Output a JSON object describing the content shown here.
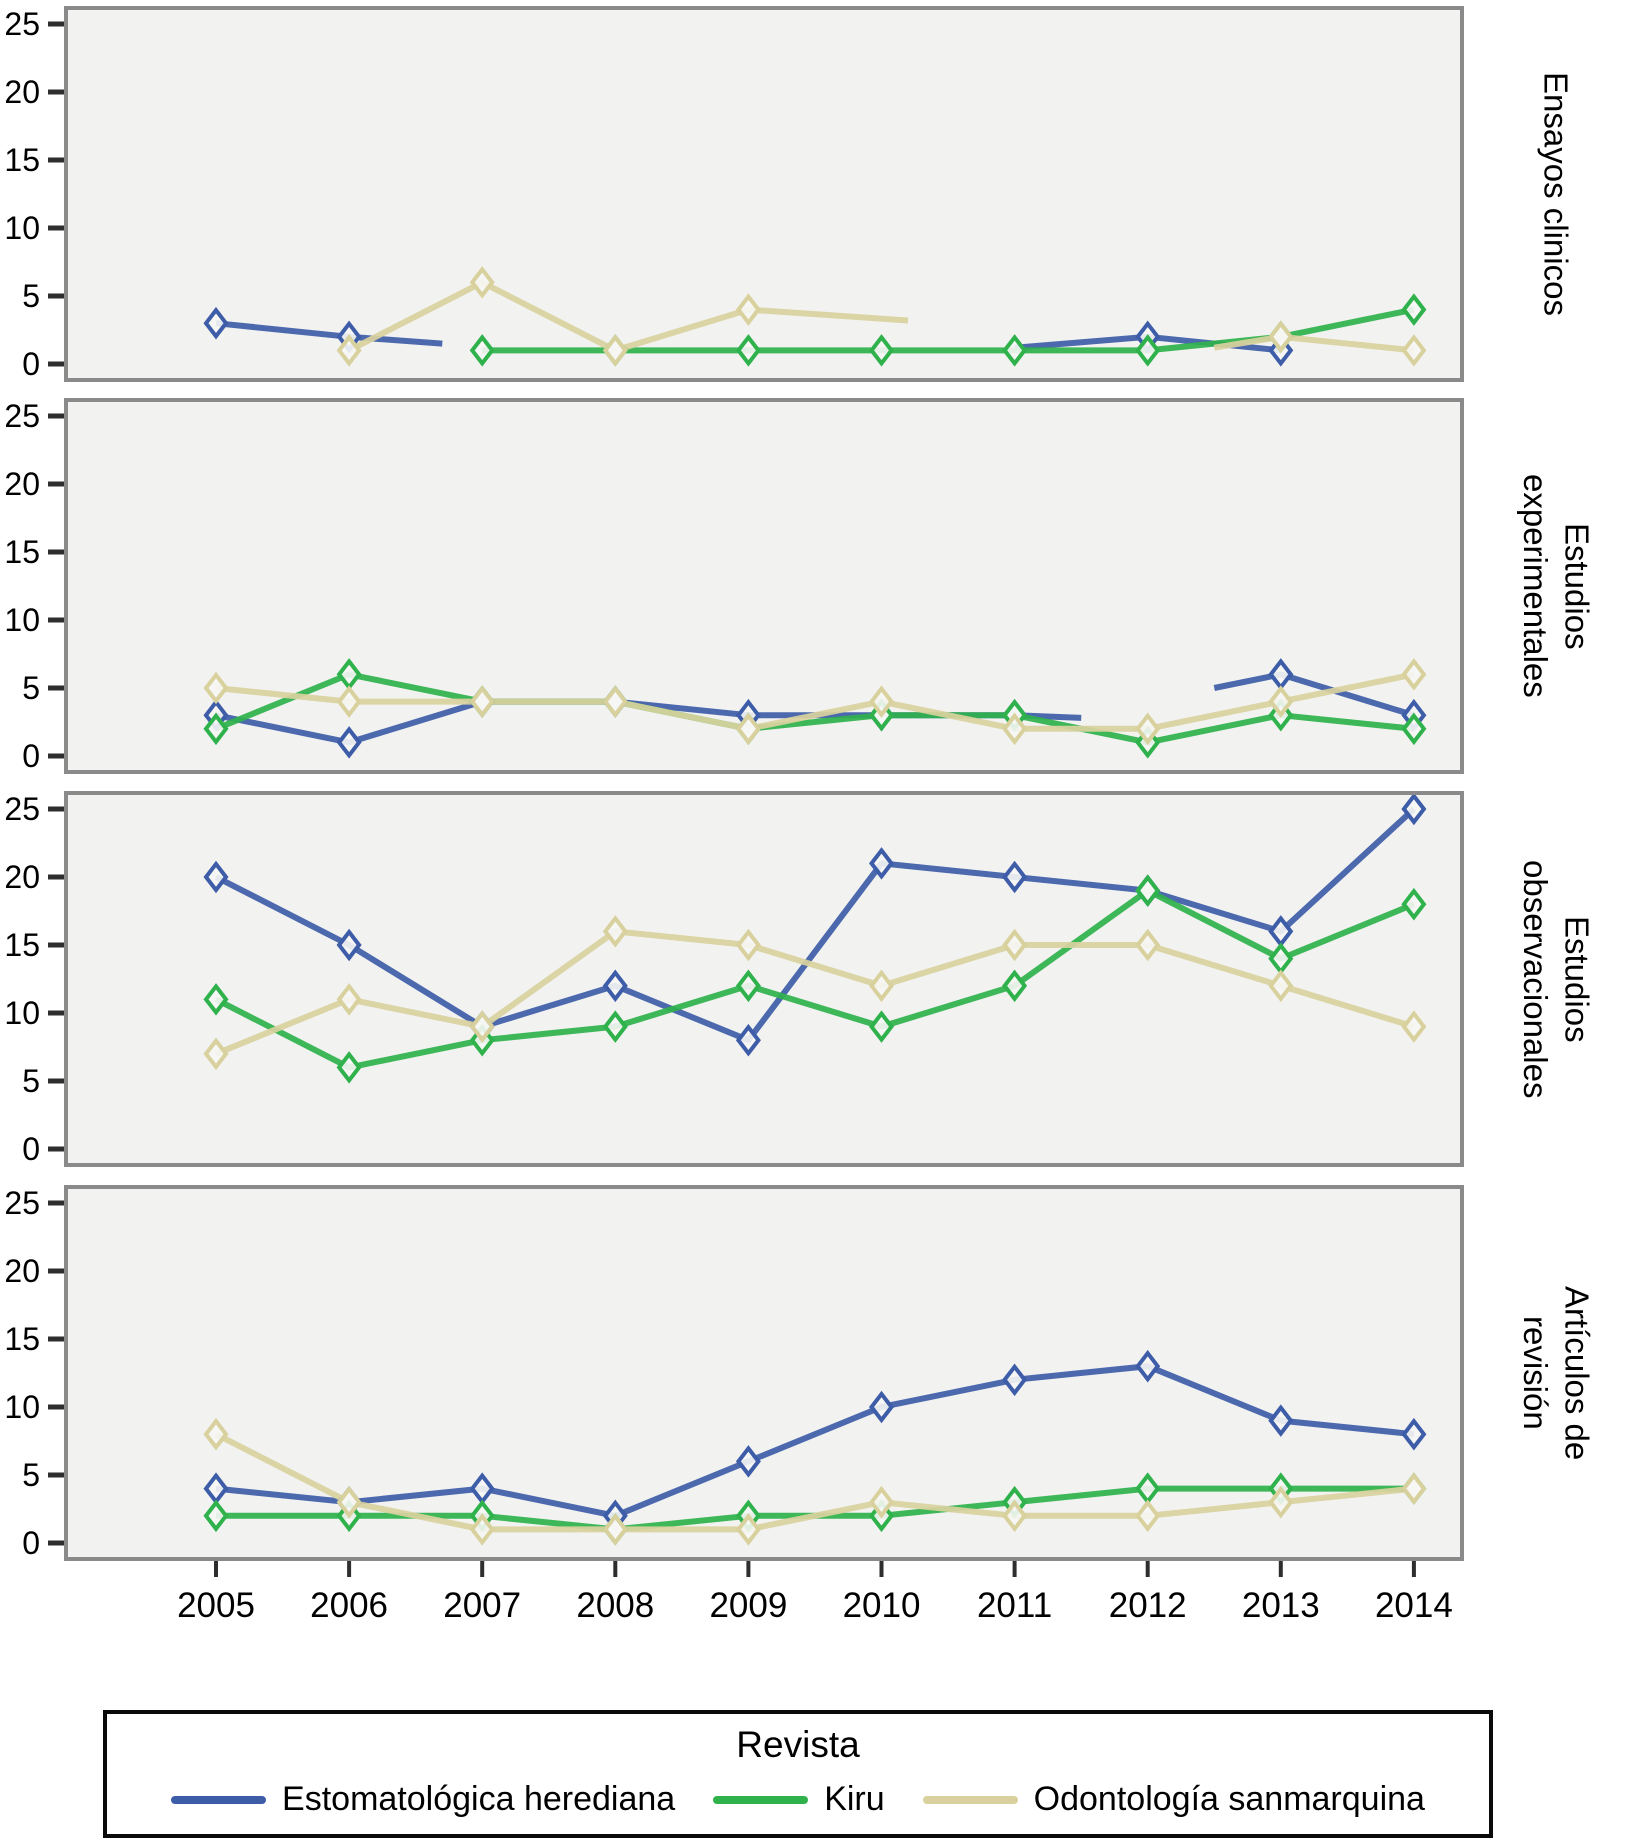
{
  "chart_data": {
    "type": "line",
    "x": [
      2005,
      2006,
      2007,
      2008,
      2009,
      2010,
      2011,
      2012,
      2013,
      2014
    ],
    "ylim": [
      0,
      25
    ],
    "yticks": [
      25,
      20,
      15,
      10,
      5,
      0
    ],
    "grid": false,
    "legend_position": "bottom",
    "colors": {
      "herediana": "#3e5da8",
      "kiru": "#2fb24c",
      "sanmarquina": "#d9d19d",
      "plot_bg": "#f2f2f1",
      "panel_border": "#8a8a8a",
      "marker_fill": "#f6f6f4"
    },
    "panels": [
      {
        "title": "Ensayos clinicos",
        "series": [
          {
            "name": "Estomatológica herediana",
            "color_key": "herediana",
            "segments": [
              [
                [
                  2005,
                  3
                ],
                [
                  2006,
                  2
                ],
                [
                  2006.7,
                  1.5,
                  false
                ]
              ],
              [
                [
                  2011,
                  1.2,
                  false
                ],
                [
                  2012,
                  2
                ],
                [
                  2013,
                  1
                ]
              ]
            ]
          },
          {
            "name": "Kiru",
            "color_key": "kiru",
            "segments": [
              [
                [
                  2007,
                  1
                ],
                [
                  2008,
                  1
                ],
                [
                  2009,
                  1
                ],
                [
                  2010,
                  1
                ],
                [
                  2011,
                  1
                ],
                [
                  2012,
                  1
                ],
                [
                  2013,
                  2
                ],
                [
                  2014,
                  4
                ]
              ]
            ]
          },
          {
            "name": "Odontología sanmarquina",
            "color_key": "sanmarquina",
            "segments": [
              [
                [
                  2006,
                  1
                ],
                [
                  2007,
                  6
                ],
                [
                  2008,
                  1
                ],
                [
                  2009,
                  4
                ],
                [
                  2010.2,
                  3.2,
                  false
                ]
              ],
              [
                [
                  2012.5,
                  1.2,
                  false
                ],
                [
                  2013,
                  2
                ],
                [
                  2014,
                  1
                ]
              ]
            ]
          }
        ]
      },
      {
        "title": "Estudios\nexperimentales",
        "series": [
          {
            "name": "Estomatológica herediana",
            "color_key": "herediana",
            "segments": [
              [
                [
                  2005,
                  3
                ],
                [
                  2006,
                  1
                ],
                [
                  2007,
                  4
                ],
                [
                  2008,
                  4
                ],
                [
                  2009,
                  3
                ],
                [
                  2010,
                  3
                ],
                [
                  2011,
                  3
                ],
                [
                  2011.5,
                  2.8,
                  false
                ]
              ],
              [
                [
                  2012.5,
                  5,
                  false
                ],
                [
                  2013,
                  6
                ],
                [
                  2014,
                  3
                ]
              ]
            ]
          },
          {
            "name": "Kiru",
            "color_key": "kiru",
            "segments": [
              [
                [
                  2005,
                  2
                ],
                [
                  2006,
                  6
                ],
                [
                  2007,
                  4
                ],
                [
                  2008,
                  4
                ],
                [
                  2009,
                  2
                ],
                [
                  2010,
                  3
                ],
                [
                  2011,
                  3
                ],
                [
                  2012,
                  1
                ],
                [
                  2013,
                  3
                ],
                [
                  2014,
                  2
                ]
              ]
            ]
          },
          {
            "name": "Odontología sanmarquina",
            "color_key": "sanmarquina",
            "segments": [
              [
                [
                  2005,
                  5
                ],
                [
                  2006,
                  4
                ],
                [
                  2007,
                  4
                ],
                [
                  2008,
                  4
                ],
                [
                  2009,
                  2
                ],
                [
                  2010,
                  4
                ],
                [
                  2011,
                  2
                ],
                [
                  2012,
                  2
                ],
                [
                  2013,
                  4
                ],
                [
                  2014,
                  6
                ]
              ]
            ]
          }
        ]
      },
      {
        "title": "Estudios\nobservacionales",
        "series": [
          {
            "name": "Estomatológica herediana",
            "color_key": "herediana",
            "segments": [
              [
                [
                  2005,
                  20
                ],
                [
                  2006,
                  15
                ],
                [
                  2007,
                  9
                ],
                [
                  2008,
                  12
                ],
                [
                  2009,
                  8
                ],
                [
                  2010,
                  21
                ],
                [
                  2011,
                  20
                ],
                [
                  2012,
                  19
                ],
                [
                  2013,
                  16
                ],
                [
                  2014,
                  25
                ]
              ]
            ]
          },
          {
            "name": "Kiru",
            "color_key": "kiru",
            "segments": [
              [
                [
                  2005,
                  11
                ],
                [
                  2006,
                  6
                ],
                [
                  2007,
                  8
                ],
                [
                  2008,
                  9
                ],
                [
                  2009,
                  12
                ],
                [
                  2010,
                  9
                ],
                [
                  2011,
                  12
                ],
                [
                  2012,
                  19
                ],
                [
                  2013,
                  14
                ],
                [
                  2014,
                  18
                ]
              ]
            ]
          },
          {
            "name": "Odontología sanmarquina",
            "color_key": "sanmarquina",
            "segments": [
              [
                [
                  2005,
                  7
                ],
                [
                  2006,
                  11
                ],
                [
                  2007,
                  9
                ],
                [
                  2008,
                  16
                ],
                [
                  2009,
                  15
                ],
                [
                  2010,
                  12
                ],
                [
                  2011,
                  15
                ],
                [
                  2012,
                  15
                ],
                [
                  2013,
                  12
                ],
                [
                  2014,
                  9
                ]
              ]
            ]
          }
        ]
      },
      {
        "title": "Artículos de\nrevisión",
        "series": [
          {
            "name": "Estomatológica herediana",
            "color_key": "herediana",
            "segments": [
              [
                [
                  2005,
                  4
                ],
                [
                  2006,
                  3
                ],
                [
                  2007,
                  4
                ],
                [
                  2008,
                  2
                ],
                [
                  2009,
                  6
                ],
                [
                  2010,
                  10
                ],
                [
                  2011,
                  12
                ],
                [
                  2012,
                  13
                ],
                [
                  2013,
                  9
                ],
                [
                  2014,
                  8
                ]
              ]
            ]
          },
          {
            "name": "Kiru",
            "color_key": "kiru",
            "segments": [
              [
                [
                  2005,
                  2
                ],
                [
                  2006,
                  2
                ],
                [
                  2007,
                  2
                ],
                [
                  2008,
                  1
                ],
                [
                  2009,
                  2
                ],
                [
                  2010,
                  2
                ],
                [
                  2011,
                  3
                ],
                [
                  2012,
                  4
                ],
                [
                  2013,
                  4
                ],
                [
                  2014,
                  4
                ]
              ]
            ]
          },
          {
            "name": "Odontología sanmarquina",
            "color_key": "sanmarquina",
            "segments": [
              [
                [
                  2005,
                  8
                ],
                [
                  2006,
                  3
                ],
                [
                  2007,
                  1
                ],
                [
                  2008,
                  1
                ],
                [
                  2009,
                  1
                ],
                [
                  2010,
                  3
                ],
                [
                  2011,
                  2
                ],
                [
                  2012,
                  2
                ],
                [
                  2013,
                  3
                ],
                [
                  2014,
                  4
                ]
              ]
            ]
          }
        ]
      }
    ],
    "legend": {
      "title": "Revista",
      "entries": [
        {
          "label": "Estomatológica herediana",
          "color": "#3e5da8"
        },
        {
          "label": "Kiru",
          "color": "#2fb24c"
        },
        {
          "label": "Odontología sanmarquina",
          "color": "#d9d19d"
        }
      ]
    }
  }
}
